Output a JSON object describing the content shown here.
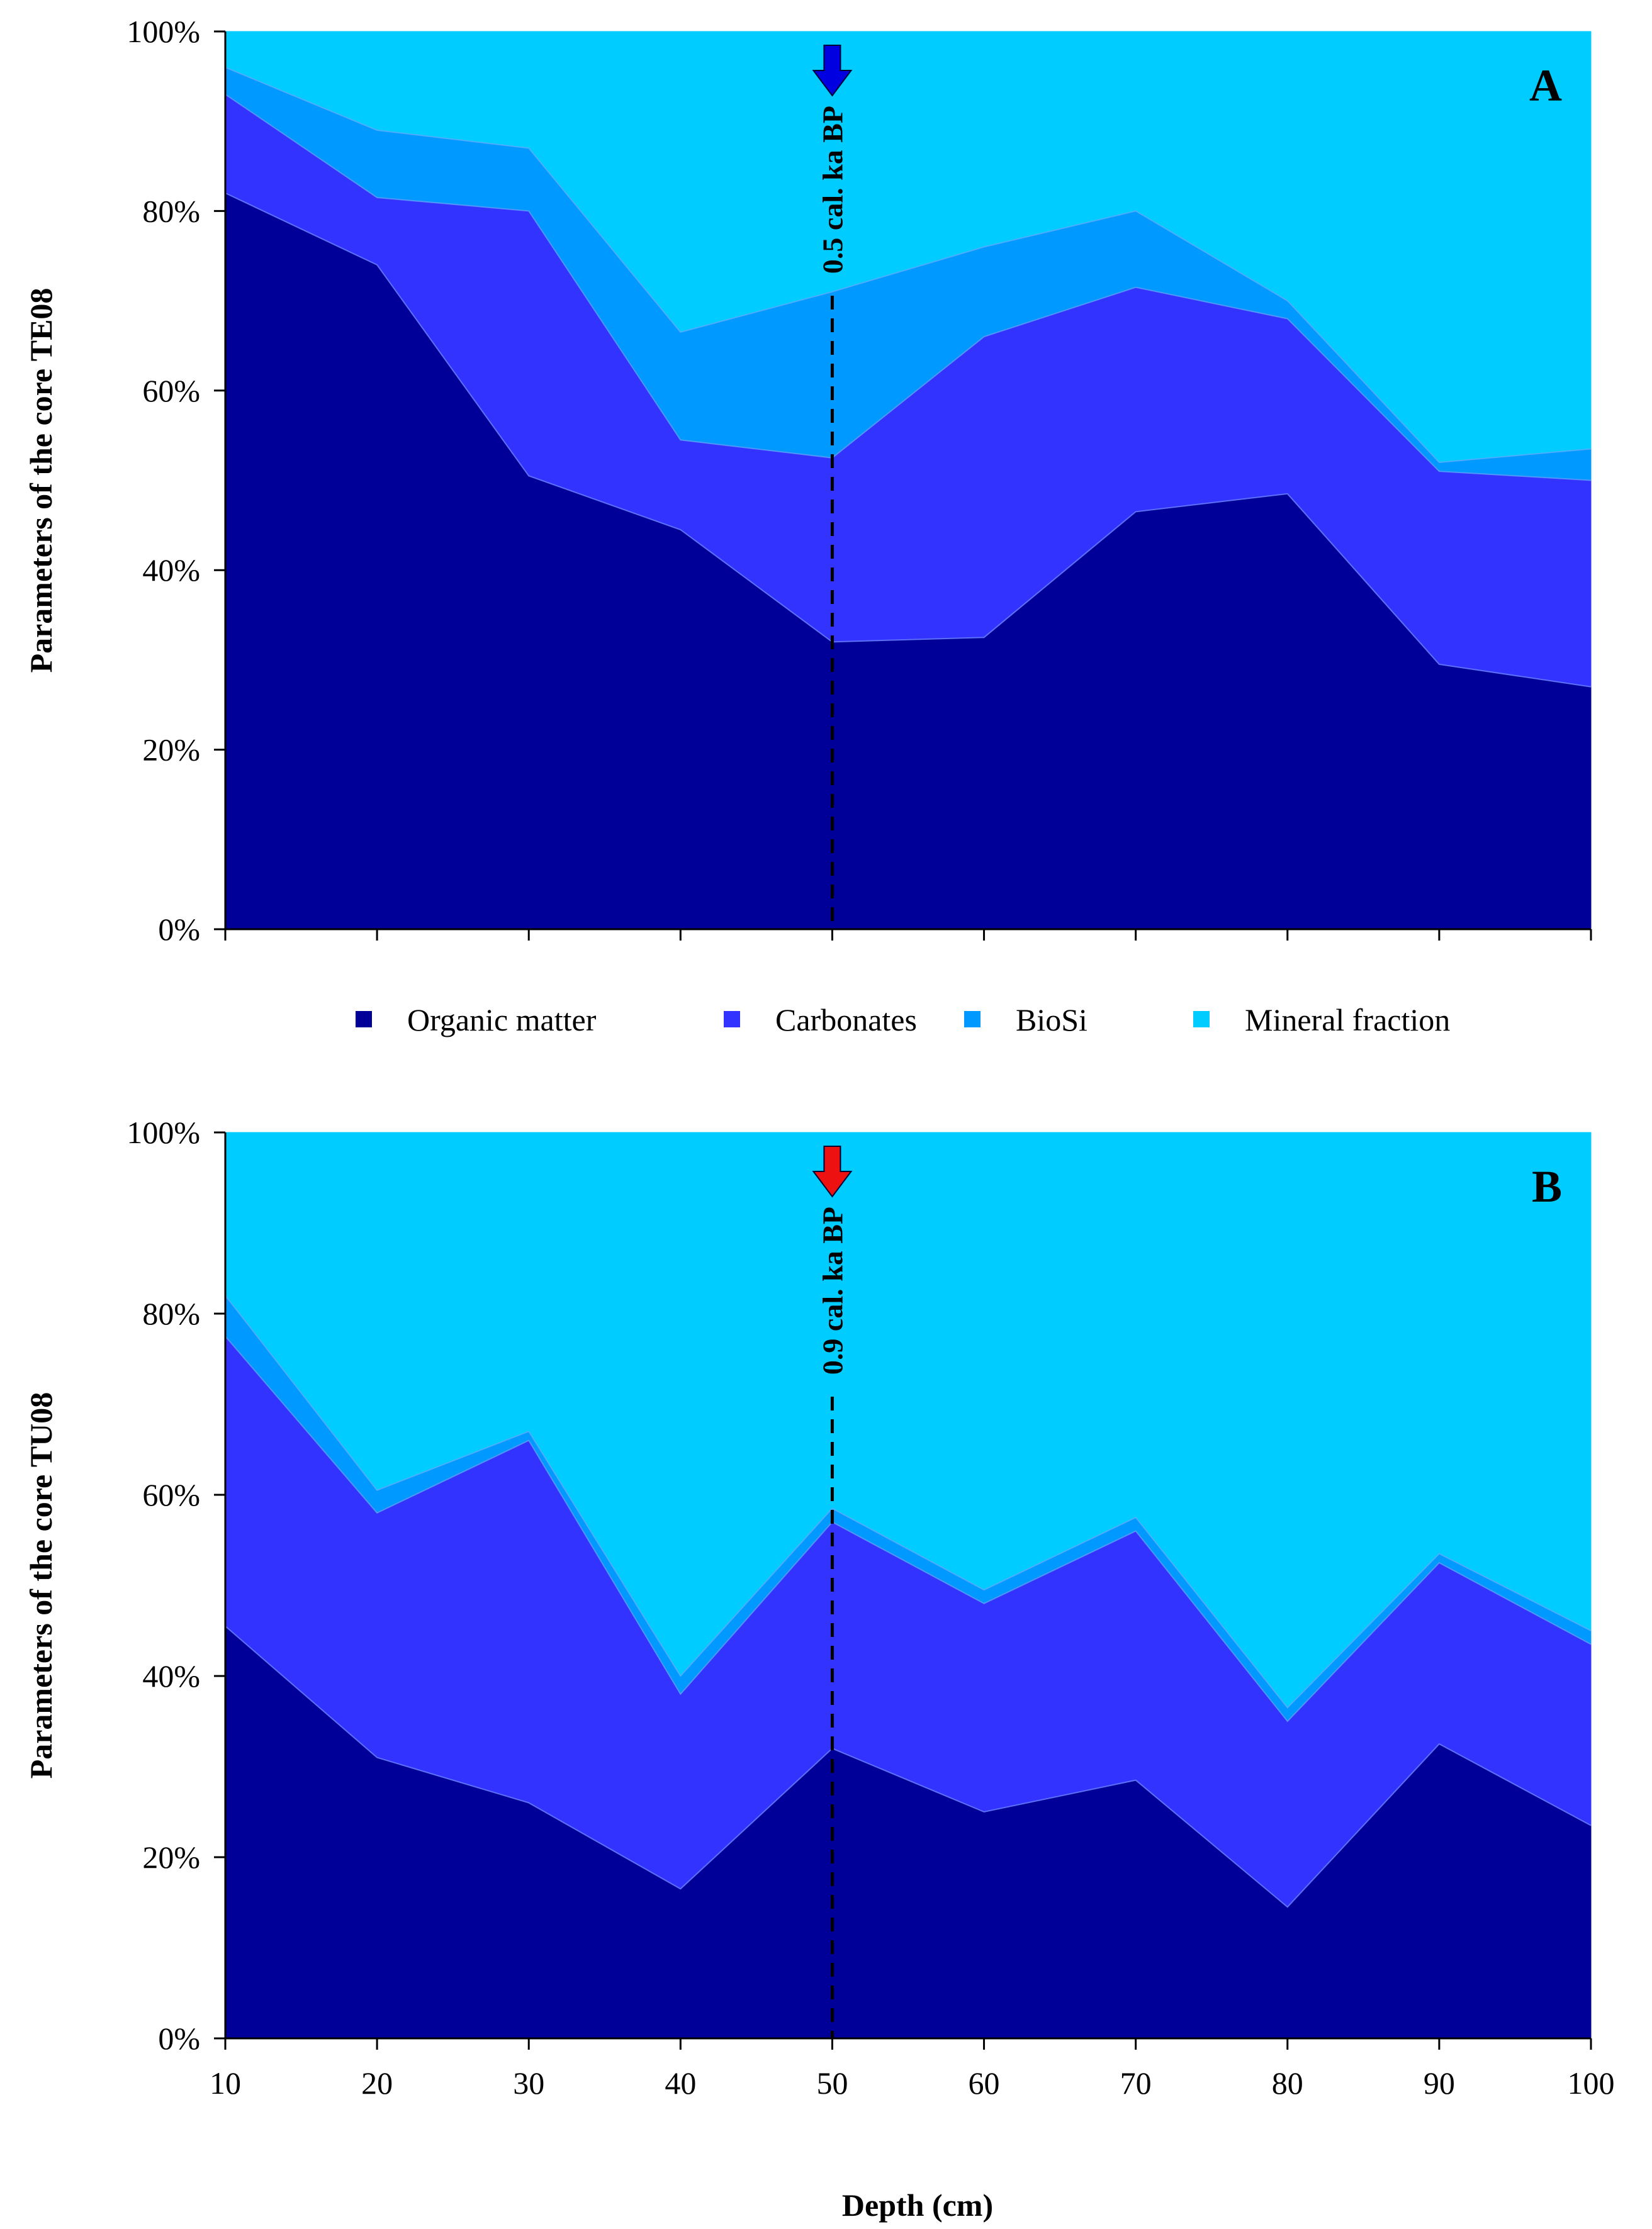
{
  "x_axis_label": "Depth (cm)",
  "legend": {
    "items": [
      {
        "label": "Organic matter",
        "color": "#000099"
      },
      {
        "label": "Carbonates",
        "color": "#3333ff"
      },
      {
        "label": "BioSi",
        "color": "#0099ff"
      },
      {
        "label": "Mineral fraction",
        "color": "#00ccff"
      }
    ]
  },
  "chart_data": [
    {
      "type": "area",
      "stacked": "percent",
      "panel_label": "A",
      "ylabel": "Parameters of the core TE08",
      "xlabel": "Depth (cm)",
      "x": [
        10,
        20,
        30,
        40,
        50,
        60,
        70,
        80,
        90,
        100
      ],
      "xlim": [
        10,
        100
      ],
      "ylim": [
        0,
        100
      ],
      "y_ticks": [
        "0%",
        "20%",
        "40%",
        "60%",
        "80%",
        "100%"
      ],
      "x_ticks": [
        "10",
        "20",
        "30",
        "40",
        "50",
        "60",
        "70",
        "80",
        "90",
        "100"
      ],
      "series": [
        {
          "name": "Organic matter",
          "color": "#000099",
          "values": [
            82,
            74,
            50.5,
            44.5,
            32,
            32.5,
            46.5,
            48.5,
            29.5,
            27
          ]
        },
        {
          "name": "Carbonates",
          "color": "#3333ff",
          "values": [
            11,
            7.5,
            29.5,
            10,
            20.5,
            33.5,
            25,
            19.5,
            21.5,
            23
          ]
        },
        {
          "name": "BioSi",
          "color": "#0099ff",
          "values": [
            3,
            7.5,
            7,
            12,
            18.5,
            10,
            8.5,
            2,
            1,
            3.5
          ]
        },
        {
          "name": "Mineral fraction",
          "color": "#00ccff",
          "values": [
            4,
            11,
            13,
            33.5,
            29,
            24,
            20,
            30,
            48,
            46.5
          ]
        }
      ],
      "marker": {
        "x": 50,
        "label": "0.5 cal. ka BP",
        "arrow_color": "#0000e0"
      }
    },
    {
      "type": "area",
      "stacked": "percent",
      "panel_label": "B",
      "ylabel": "Parameters of the core TU08",
      "xlabel": "Depth (cm)",
      "x": [
        10,
        20,
        30,
        40,
        50,
        60,
        70,
        80,
        90,
        100
      ],
      "xlim": [
        10,
        100
      ],
      "ylim": [
        0,
        100
      ],
      "y_ticks": [
        "0%",
        "20%",
        "40%",
        "60%",
        "80%",
        "100%"
      ],
      "x_ticks": [
        "10",
        "20",
        "30",
        "40",
        "50",
        "60",
        "70",
        "80",
        "90",
        "100"
      ],
      "series": [
        {
          "name": "Organic matter",
          "color": "#000099",
          "values": [
            45.5,
            31,
            26,
            16.5,
            32,
            25,
            28.5,
            14.5,
            32.5,
            23.5
          ]
        },
        {
          "name": "Carbonates",
          "color": "#3333ff",
          "values": [
            32,
            27,
            40,
            21.5,
            25,
            23,
            27.5,
            20.5,
            20,
            20
          ]
        },
        {
          "name": "BioSi",
          "color": "#0099ff",
          "values": [
            4.5,
            2.5,
            1,
            2,
            1.5,
            1.5,
            1.5,
            1.5,
            1,
            1.5
          ]
        },
        {
          "name": "Mineral fraction",
          "color": "#00ccff",
          "values": [
            18,
            39.5,
            33,
            60,
            41.5,
            50.5,
            42.5,
            63.5,
            46.5,
            55
          ]
        }
      ],
      "marker": {
        "x": 50,
        "label": "0.9 cal. ka BP",
        "arrow_color": "#ee1111"
      }
    }
  ]
}
